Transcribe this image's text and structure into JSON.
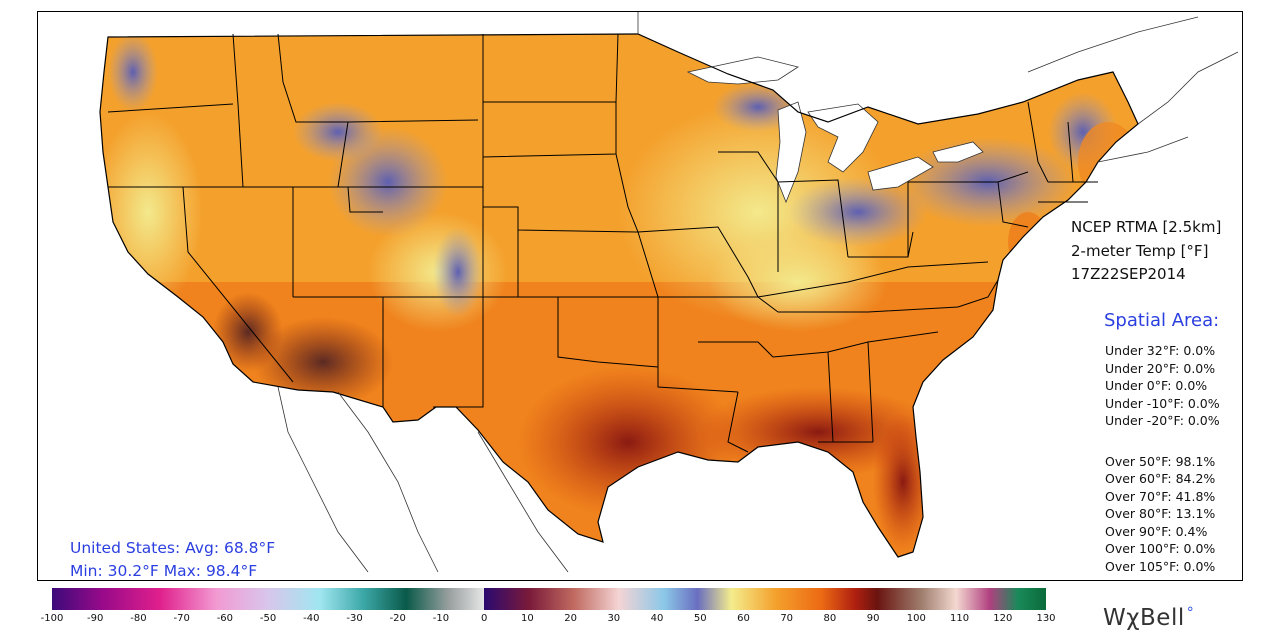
{
  "product": {
    "source": "NCEP RTMA [2.5km]",
    "variable": "2-meter Temp [°F]",
    "valid_time": "17Z22SEP2014"
  },
  "spatial_area": {
    "title": "Spatial Area:",
    "under": [
      "Under 32°F: 0.0%",
      "Under 20°F: 0.0%",
      "Under 0°F: 0.0%",
      "Under -10°F: 0.0%",
      "Under -20°F: 0.0%"
    ],
    "over": [
      "Over 50°F: 98.1%",
      "Over 60°F: 84.2%",
      "Over 70°F: 41.8%",
      "Over 80°F: 13.1%",
      "Over 90°F: 0.4%",
      "Over 100°F: 0.0%",
      "Over 105°F: 0.0%"
    ]
  },
  "summary": {
    "avg_line": "United States: Avg:  68.8°F",
    "minmax_line": "Min:  30.2°F Max:  98.4°F"
  },
  "colorbar": {
    "ticks": [
      "-100",
      "-90",
      "-80",
      "-70",
      "-60",
      "-50",
      "-40",
      "-30",
      "-20",
      "-10",
      "0",
      "10",
      "20",
      "30",
      "40",
      "50",
      "60",
      "70",
      "80",
      "90",
      "100",
      "110",
      "120",
      "130"
    ],
    "min": -100,
    "max": 130
  },
  "brand": {
    "text": "WχBell",
    "dot": "°"
  },
  "colors": {
    "accent_text": "#2b3fe0"
  }
}
